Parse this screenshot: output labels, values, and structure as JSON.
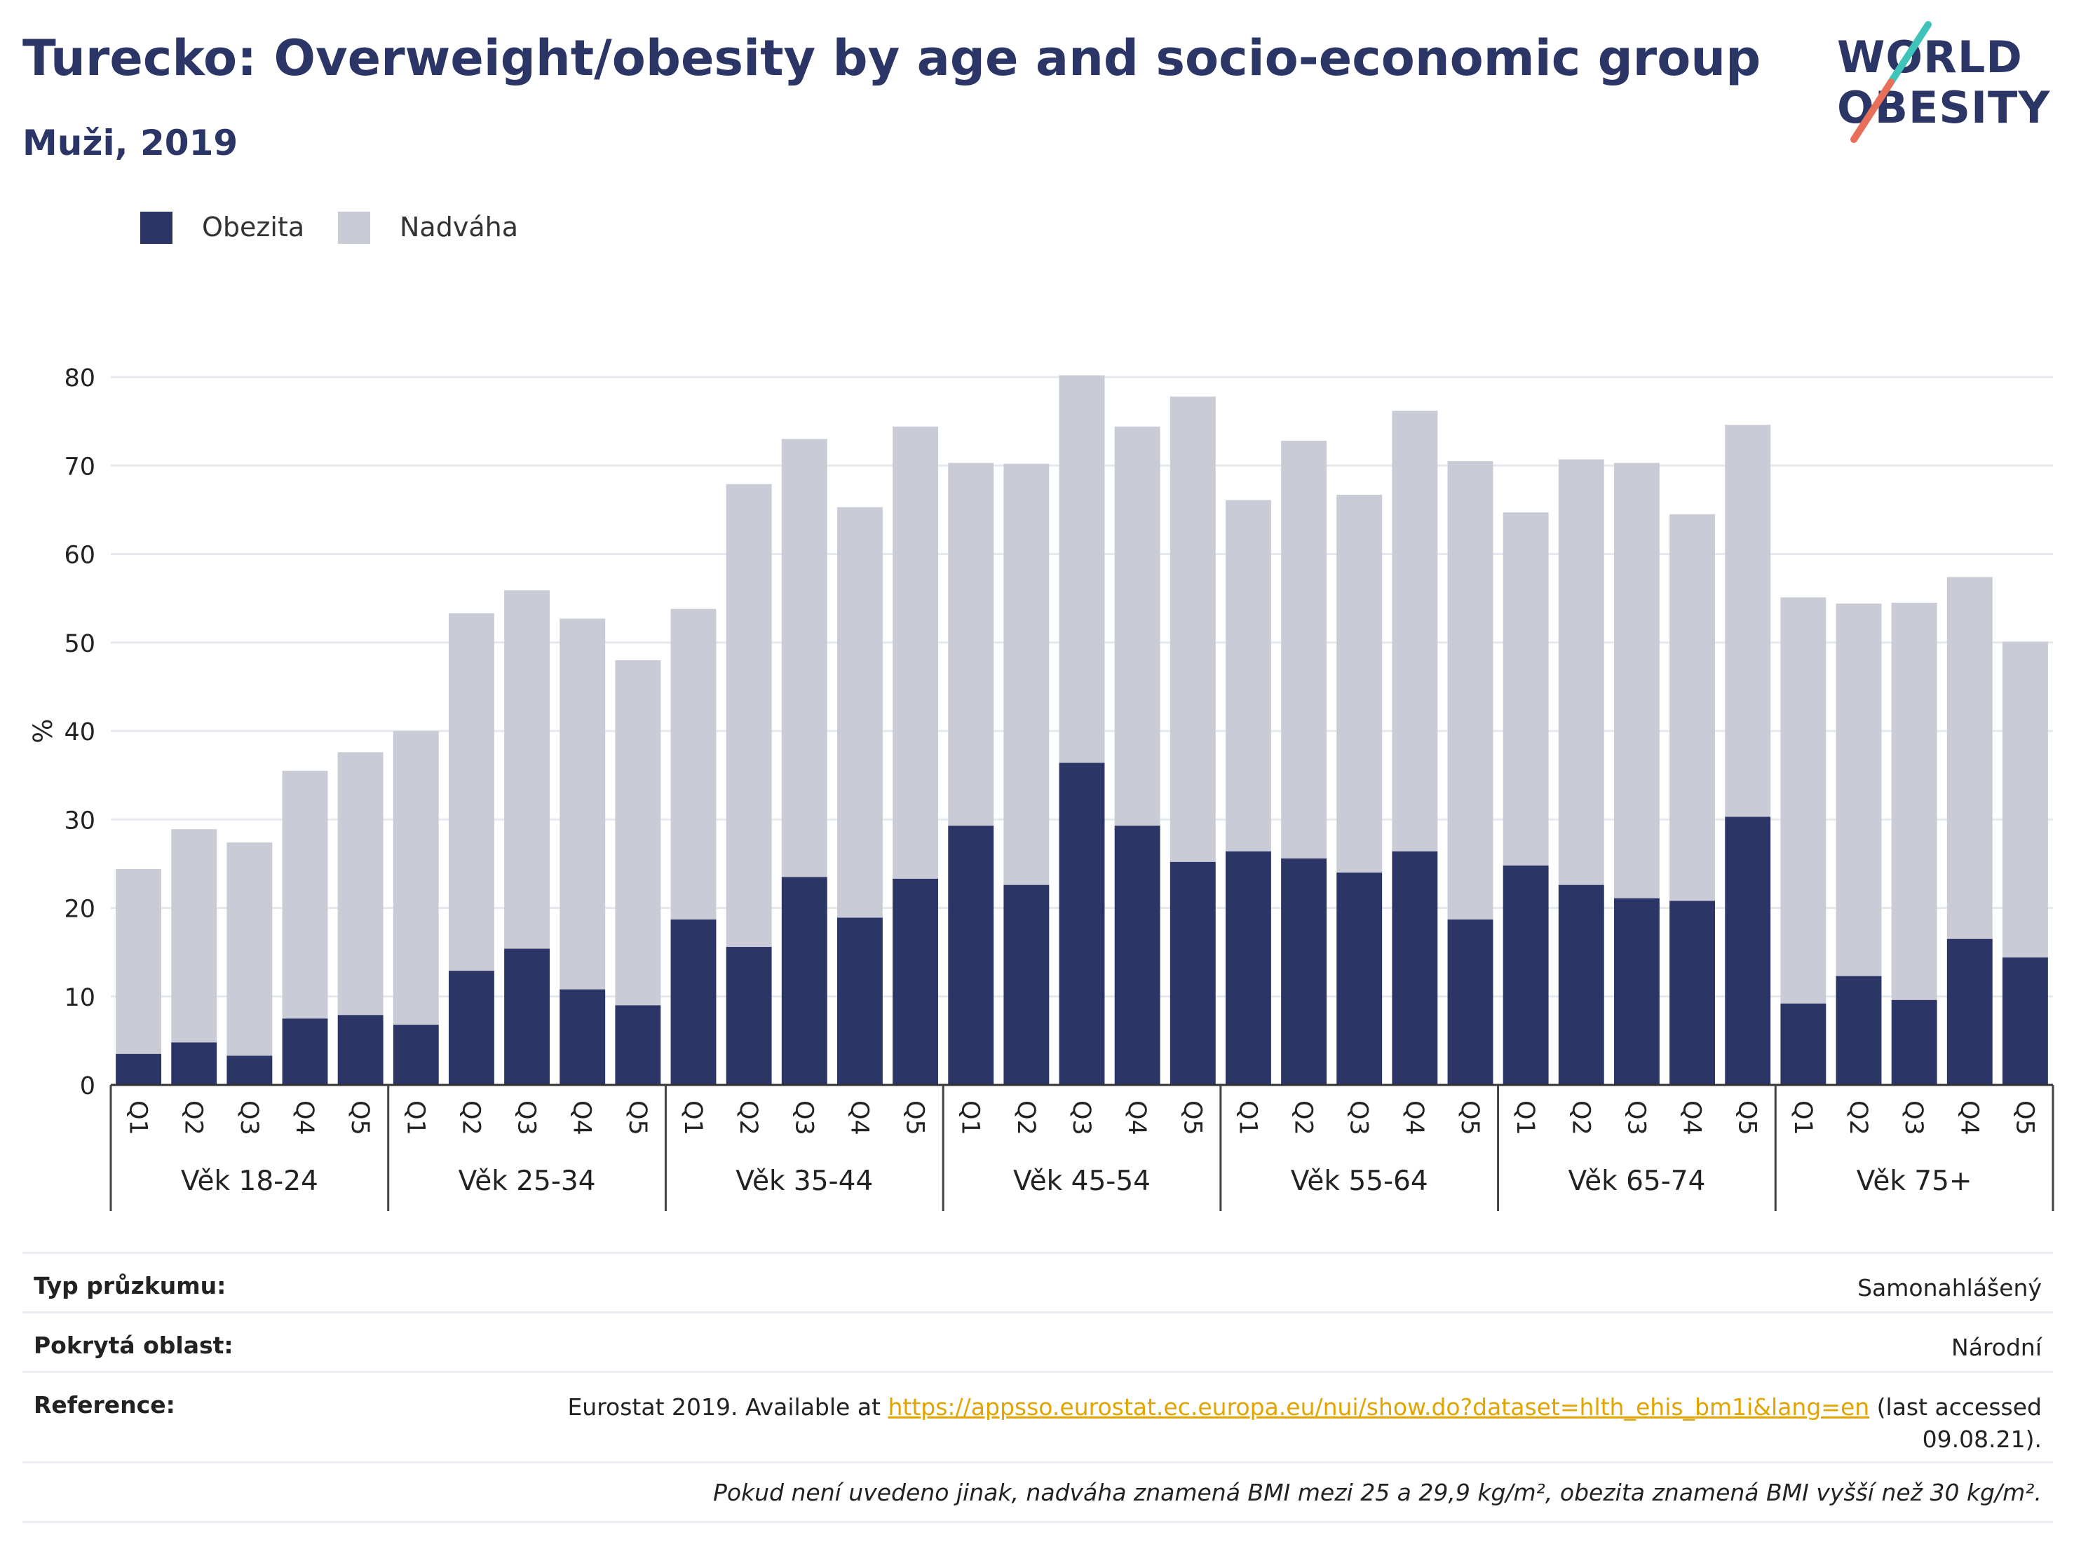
{
  "header": {
    "title": "Turecko: Overweight/obesity by age and socio-economic group",
    "subtitle": "Muži, 2019"
  },
  "logo": {
    "line1": "WORLD",
    "line2": "OBESITY"
  },
  "colors": {
    "obesity": "#2b3566",
    "overweight": "#c9cbd6",
    "brand_accent": "#e8705a",
    "brand_teal": "#3fc4b9"
  },
  "chart_data": {
    "type": "bar",
    "stacked": true,
    "ylabel": "%",
    "ylim": [
      0,
      80
    ],
    "yticks": [
      0,
      10,
      20,
      30,
      40,
      50,
      60,
      70,
      80
    ],
    "grid": true,
    "legend_position": "top-left",
    "group_labels": [
      "Věk 18-24",
      "Věk 25-34",
      "Věk 35-44",
      "Věk 45-54",
      "Věk 55-64",
      "Věk 65-74",
      "Věk 75+"
    ],
    "categories": [
      "Q1",
      "Q2",
      "Q3",
      "Q4",
      "Q5"
    ],
    "series": [
      {
        "name": "Obezita",
        "values": [
          [
            3.5,
            4.8,
            3.3,
            7.5,
            7.9
          ],
          [
            6.8,
            12.9,
            15.4,
            10.8,
            9.0
          ],
          [
            18.7,
            15.6,
            23.5,
            18.9,
            23.3
          ],
          [
            29.3,
            22.6,
            36.4,
            29.3,
            25.2
          ],
          [
            26.4,
            25.6,
            24.0,
            26.4,
            18.7
          ],
          [
            24.8,
            22.6,
            21.1,
            20.8,
            30.3
          ],
          [
            9.2,
            12.3,
            9.6,
            16.5,
            14.4
          ]
        ]
      },
      {
        "name": "Nadváha",
        "values": [
          [
            20.9,
            24.1,
            24.1,
            28.0,
            29.7
          ],
          [
            33.2,
            40.4,
            40.5,
            41.9,
            39.0
          ],
          [
            35.1,
            52.3,
            49.5,
            46.4,
            51.1
          ],
          [
            41.0,
            47.6,
            43.8,
            45.1,
            52.6
          ],
          [
            39.7,
            47.2,
            42.7,
            49.8,
            51.8
          ],
          [
            39.9,
            48.1,
            49.2,
            43.7,
            44.3
          ],
          [
            45.9,
            42.1,
            44.9,
            40.9,
            35.7
          ]
        ]
      }
    ]
  },
  "info": {
    "rows": [
      {
        "label": "Typ průzkumu:",
        "value": "Samonahlášený"
      },
      {
        "label": "Pokrytá oblast:",
        "value": "Národní"
      }
    ],
    "reference": {
      "label": "Reference:",
      "prefix": "Eurostat 2019. Available at ",
      "link": "https://appsso.eurostat.ec.europa.eu/nui/show.do?dataset=hlth_ehis_bm1i&lang=en",
      "suffix_line1": " (last accessed",
      "suffix_line2": "09.08.21)."
    },
    "note": "Pokud není uvedeno jinak, nadváha znamená BMI mezi 25 a 29,9 kg/m², obezita znamená BMI vyšší než 30 kg/m²."
  }
}
